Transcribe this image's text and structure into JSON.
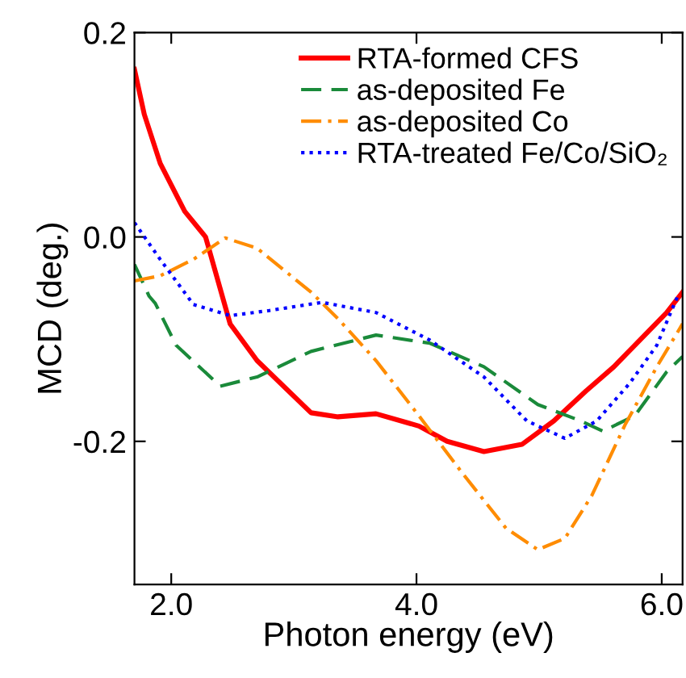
{
  "chart_data": {
    "type": "line",
    "xlabel": "Photon energy (eV)",
    "ylabel": "MCD (deg.)",
    "xlim": [
      1.7,
      6.17
    ],
    "ylim": [
      -0.34,
      0.2
    ],
    "xticks": [
      {
        "value": 2.0,
        "label": "2.0"
      },
      {
        "value": 4.0,
        "label": "4.0"
      },
      {
        "value": 6.0,
        "label": "6.0"
      }
    ],
    "yticks": [
      {
        "value": -0.2,
        "label": "-0.2"
      },
      {
        "value": 0.0,
        "label": "0.0"
      },
      {
        "value": 0.2,
        "label": "0.2"
      }
    ],
    "grid": false,
    "legend": "top right",
    "marker": "none",
    "series": [
      {
        "name": "RTA-formed CFS",
        "color": "#ff0000",
        "line_style": "solid",
        "x": [
          1.7,
          1.78,
          1.91,
          2.11,
          2.28,
          2.48,
          2.7,
          3.14,
          3.36,
          3.67,
          4.02,
          4.25,
          4.55,
          4.86,
          5.12,
          5.38,
          5.61,
          5.78,
          6.04,
          6.17
        ],
        "values": [
          0.164,
          0.12,
          0.072,
          0.025,
          0.0,
          -0.085,
          -0.121,
          -0.172,
          -0.176,
          -0.173,
          -0.185,
          -0.2,
          -0.21,
          -0.203,
          -0.18,
          -0.151,
          -0.127,
          -0.106,
          -0.074,
          -0.054
        ]
      },
      {
        "name": "as-deposited Fe",
        "color": "#1a8a3a",
        "line_style": "dashed",
        "x": [
          1.7,
          1.82,
          1.87,
          2.04,
          2.4,
          2.7,
          3.14,
          3.67,
          4.11,
          4.55,
          4.99,
          5.34,
          5.52,
          5.78,
          6.04,
          6.17
        ],
        "values": [
          -0.027,
          -0.058,
          -0.065,
          -0.106,
          -0.146,
          -0.137,
          -0.112,
          -0.096,
          -0.104,
          -0.127,
          -0.164,
          -0.18,
          -0.19,
          -0.175,
          -0.132,
          -0.117
        ]
      },
      {
        "name": "as-deposited Co",
        "color": "#ff8c00",
        "line_style": "dashdot",
        "x": [
          1.7,
          1.91,
          2.18,
          2.44,
          2.7,
          3.14,
          3.36,
          3.67,
          4.02,
          4.38,
          4.73,
          4.99,
          5.21,
          5.43,
          5.7,
          5.96,
          6.17
        ],
        "values": [
          -0.043,
          -0.038,
          -0.022,
          -0.001,
          -0.011,
          -0.054,
          -0.08,
          -0.121,
          -0.175,
          -0.232,
          -0.285,
          -0.306,
          -0.295,
          -0.253,
          -0.184,
          -0.127,
          -0.085
        ]
      },
      {
        "name": "RTA-treated Fe/Co/SiO₂",
        "color": "#0000ff",
        "line_style": "dotted",
        "x": [
          1.7,
          1.91,
          2.18,
          2.48,
          2.8,
          3.23,
          3.67,
          4.11,
          4.55,
          4.9,
          5.21,
          5.47,
          5.74,
          5.96,
          6.13
        ],
        "values": [
          0.014,
          -0.022,
          -0.066,
          -0.077,
          -0.072,
          -0.064,
          -0.074,
          -0.101,
          -0.137,
          -0.18,
          -0.197,
          -0.18,
          -0.143,
          -0.106,
          -0.058
        ]
      }
    ]
  }
}
